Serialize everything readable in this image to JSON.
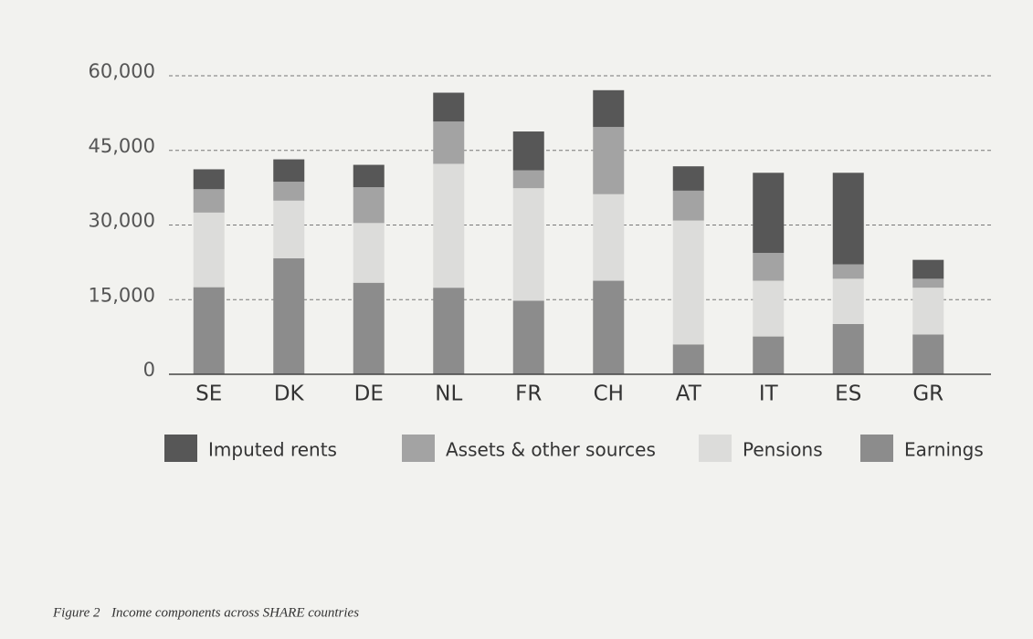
{
  "chart_data": {
    "type": "stacked_bar",
    "caption_label": "Figure 2",
    "caption": "Income components across SHARE countries",
    "categories": [
      "SE",
      "DK",
      "DE",
      "NL",
      "FR",
      "CH",
      "AT",
      "IT",
      "ES",
      "GR"
    ],
    "series": [
      {
        "name": "Imputed rents",
        "color": "#575757",
        "values": [
          4000,
          4500,
          4500,
          5800,
          7800,
          7400,
          4900,
          16100,
          18400,
          3800
        ]
      },
      {
        "name": "Assets & other sources",
        "color": "#a3a3a3",
        "values": [
          4700,
          3800,
          7200,
          8500,
          3600,
          13500,
          6000,
          5600,
          2900,
          1800
        ]
      },
      {
        "name": "Pensions",
        "color": "#dcdcda",
        "values": [
          15000,
          11600,
          12000,
          24900,
          22600,
          17400,
          24900,
          11200,
          9100,
          9400
        ]
      },
      {
        "name": "Earnings",
        "color": "#8c8c8c",
        "values": [
          17500,
          23300,
          18400,
          17400,
          14800,
          18800,
          6000,
          7600,
          10100,
          8000
        ]
      }
    ],
    "ylim": [
      0,
      60000
    ],
    "yticks": [
      0,
      {
        "value": 15000,
        "label": "15,000"
      },
      {
        "value": 30000,
        "label": "30,000"
      },
      {
        "value": 45000,
        "label": "45,000"
      },
      {
        "value": 60000,
        "label": "60,000"
      }
    ],
    "grid": true
  }
}
